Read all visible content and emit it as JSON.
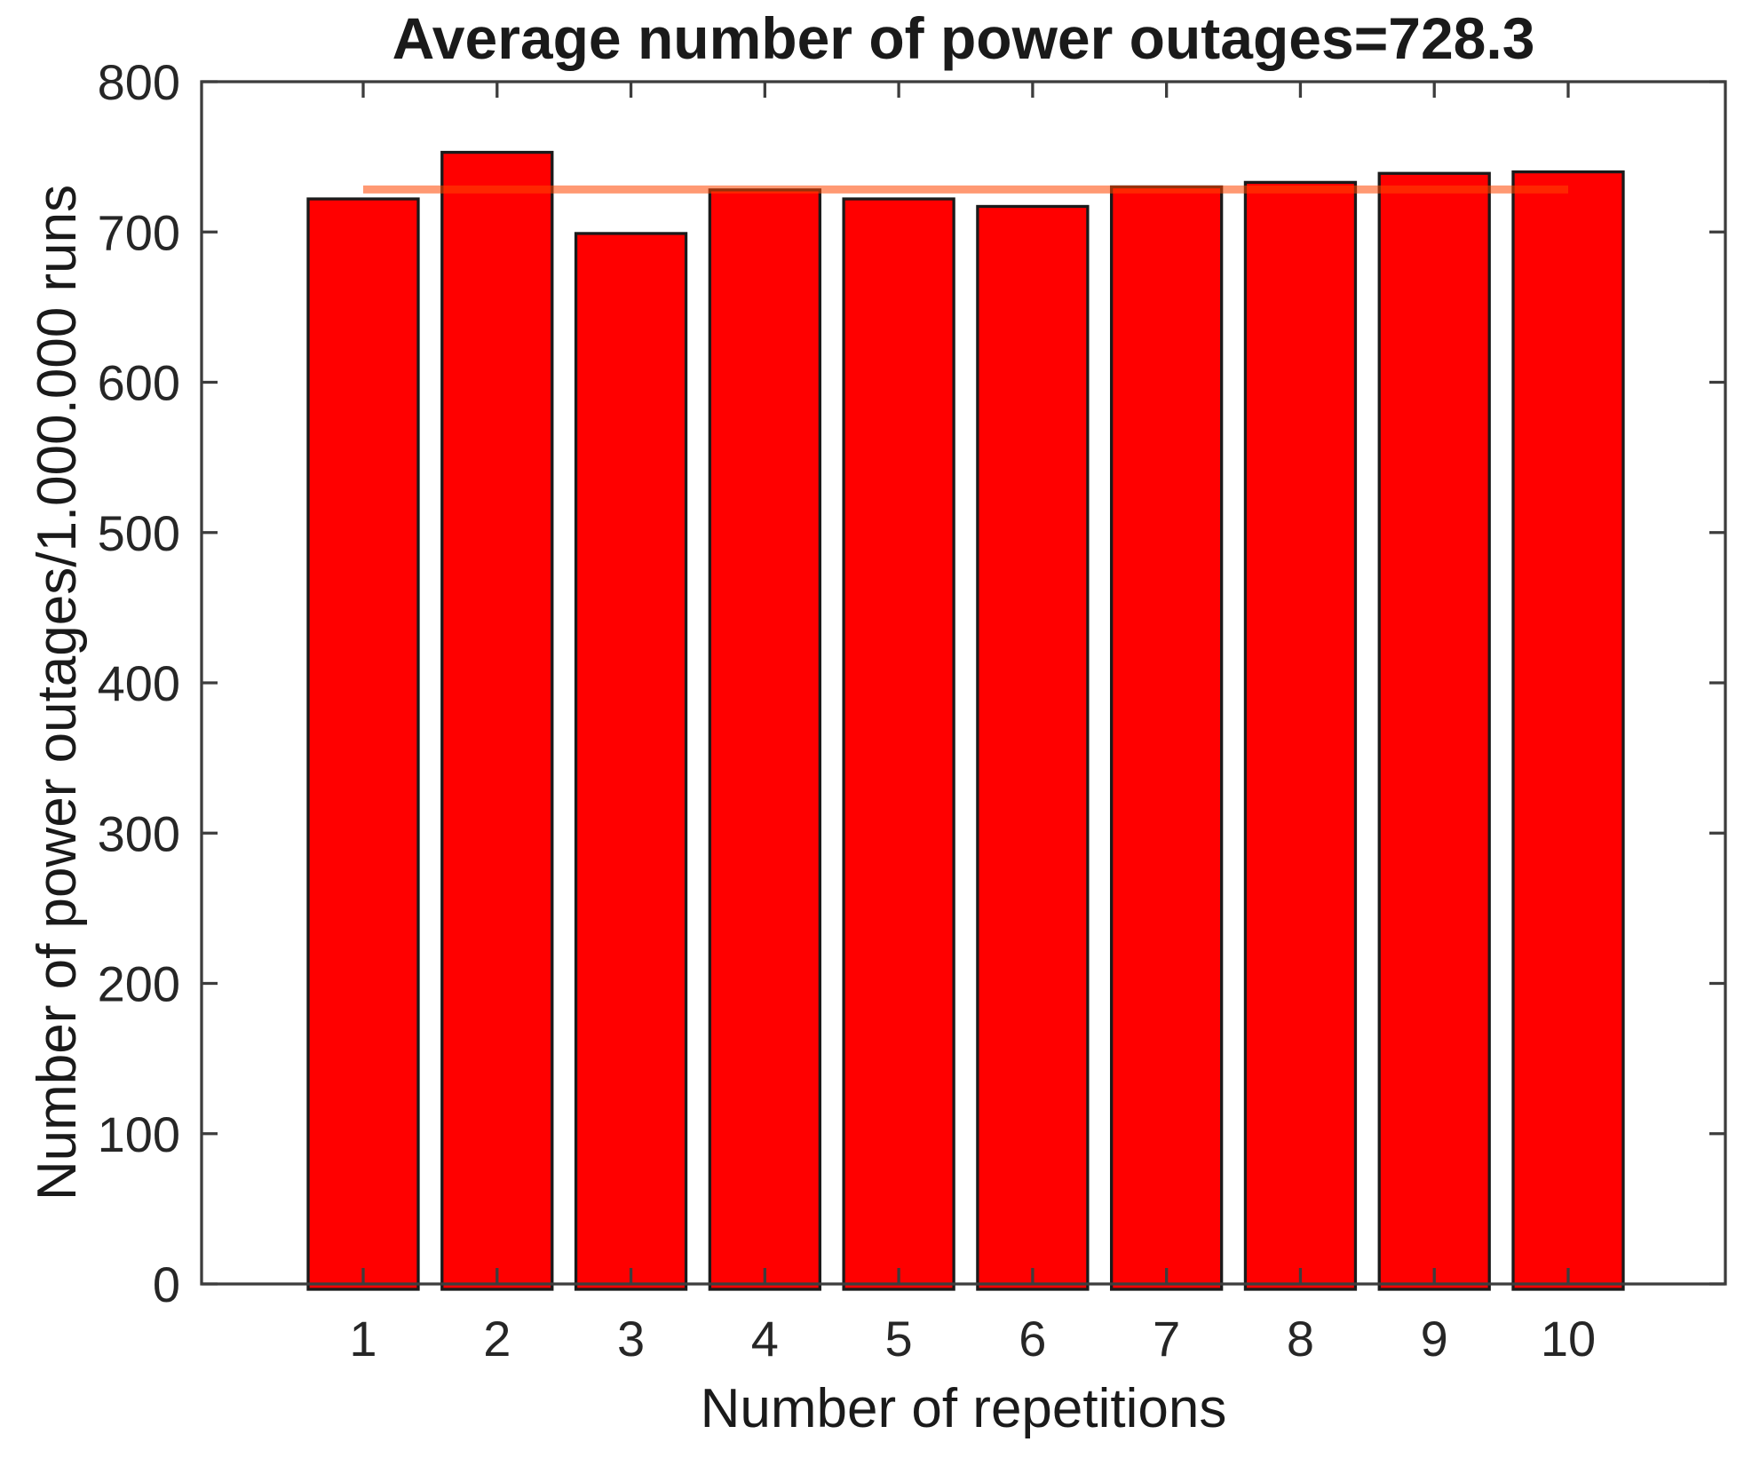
{
  "chart_data": {
    "type": "bar",
    "title": "Average number of power outages=728.3",
    "xlabel": "Number of repetitions",
    "ylabel": "Number of power outages/1.000.000 runs",
    "categories": [
      1,
      2,
      3,
      4,
      5,
      6,
      7,
      8,
      9,
      10
    ],
    "values": [
      722,
      753,
      699,
      728,
      722,
      717,
      730,
      733,
      739,
      740
    ],
    "average_value": 728.3,
    "mean_line": {
      "y_value": 728.3,
      "x_start_category": 1,
      "x_end_category": 10,
      "color": "#FF4500",
      "opacity": 0.55
    },
    "ylim": [
      0,
      800
    ],
    "yticks": [
      0,
      100,
      200,
      300,
      400,
      500,
      600,
      700,
      800
    ],
    "xticks": [
      1,
      2,
      3,
      4,
      5,
      6,
      7,
      8,
      9,
      10
    ],
    "grid": false,
    "legend": null,
    "colors": {
      "bar_fill": "#FF0000",
      "bar_edge": "#1A1A1A",
      "axis_box": "#3D3D3D",
      "tick": "#3D3D3D",
      "text": "#1A1A1A"
    }
  }
}
